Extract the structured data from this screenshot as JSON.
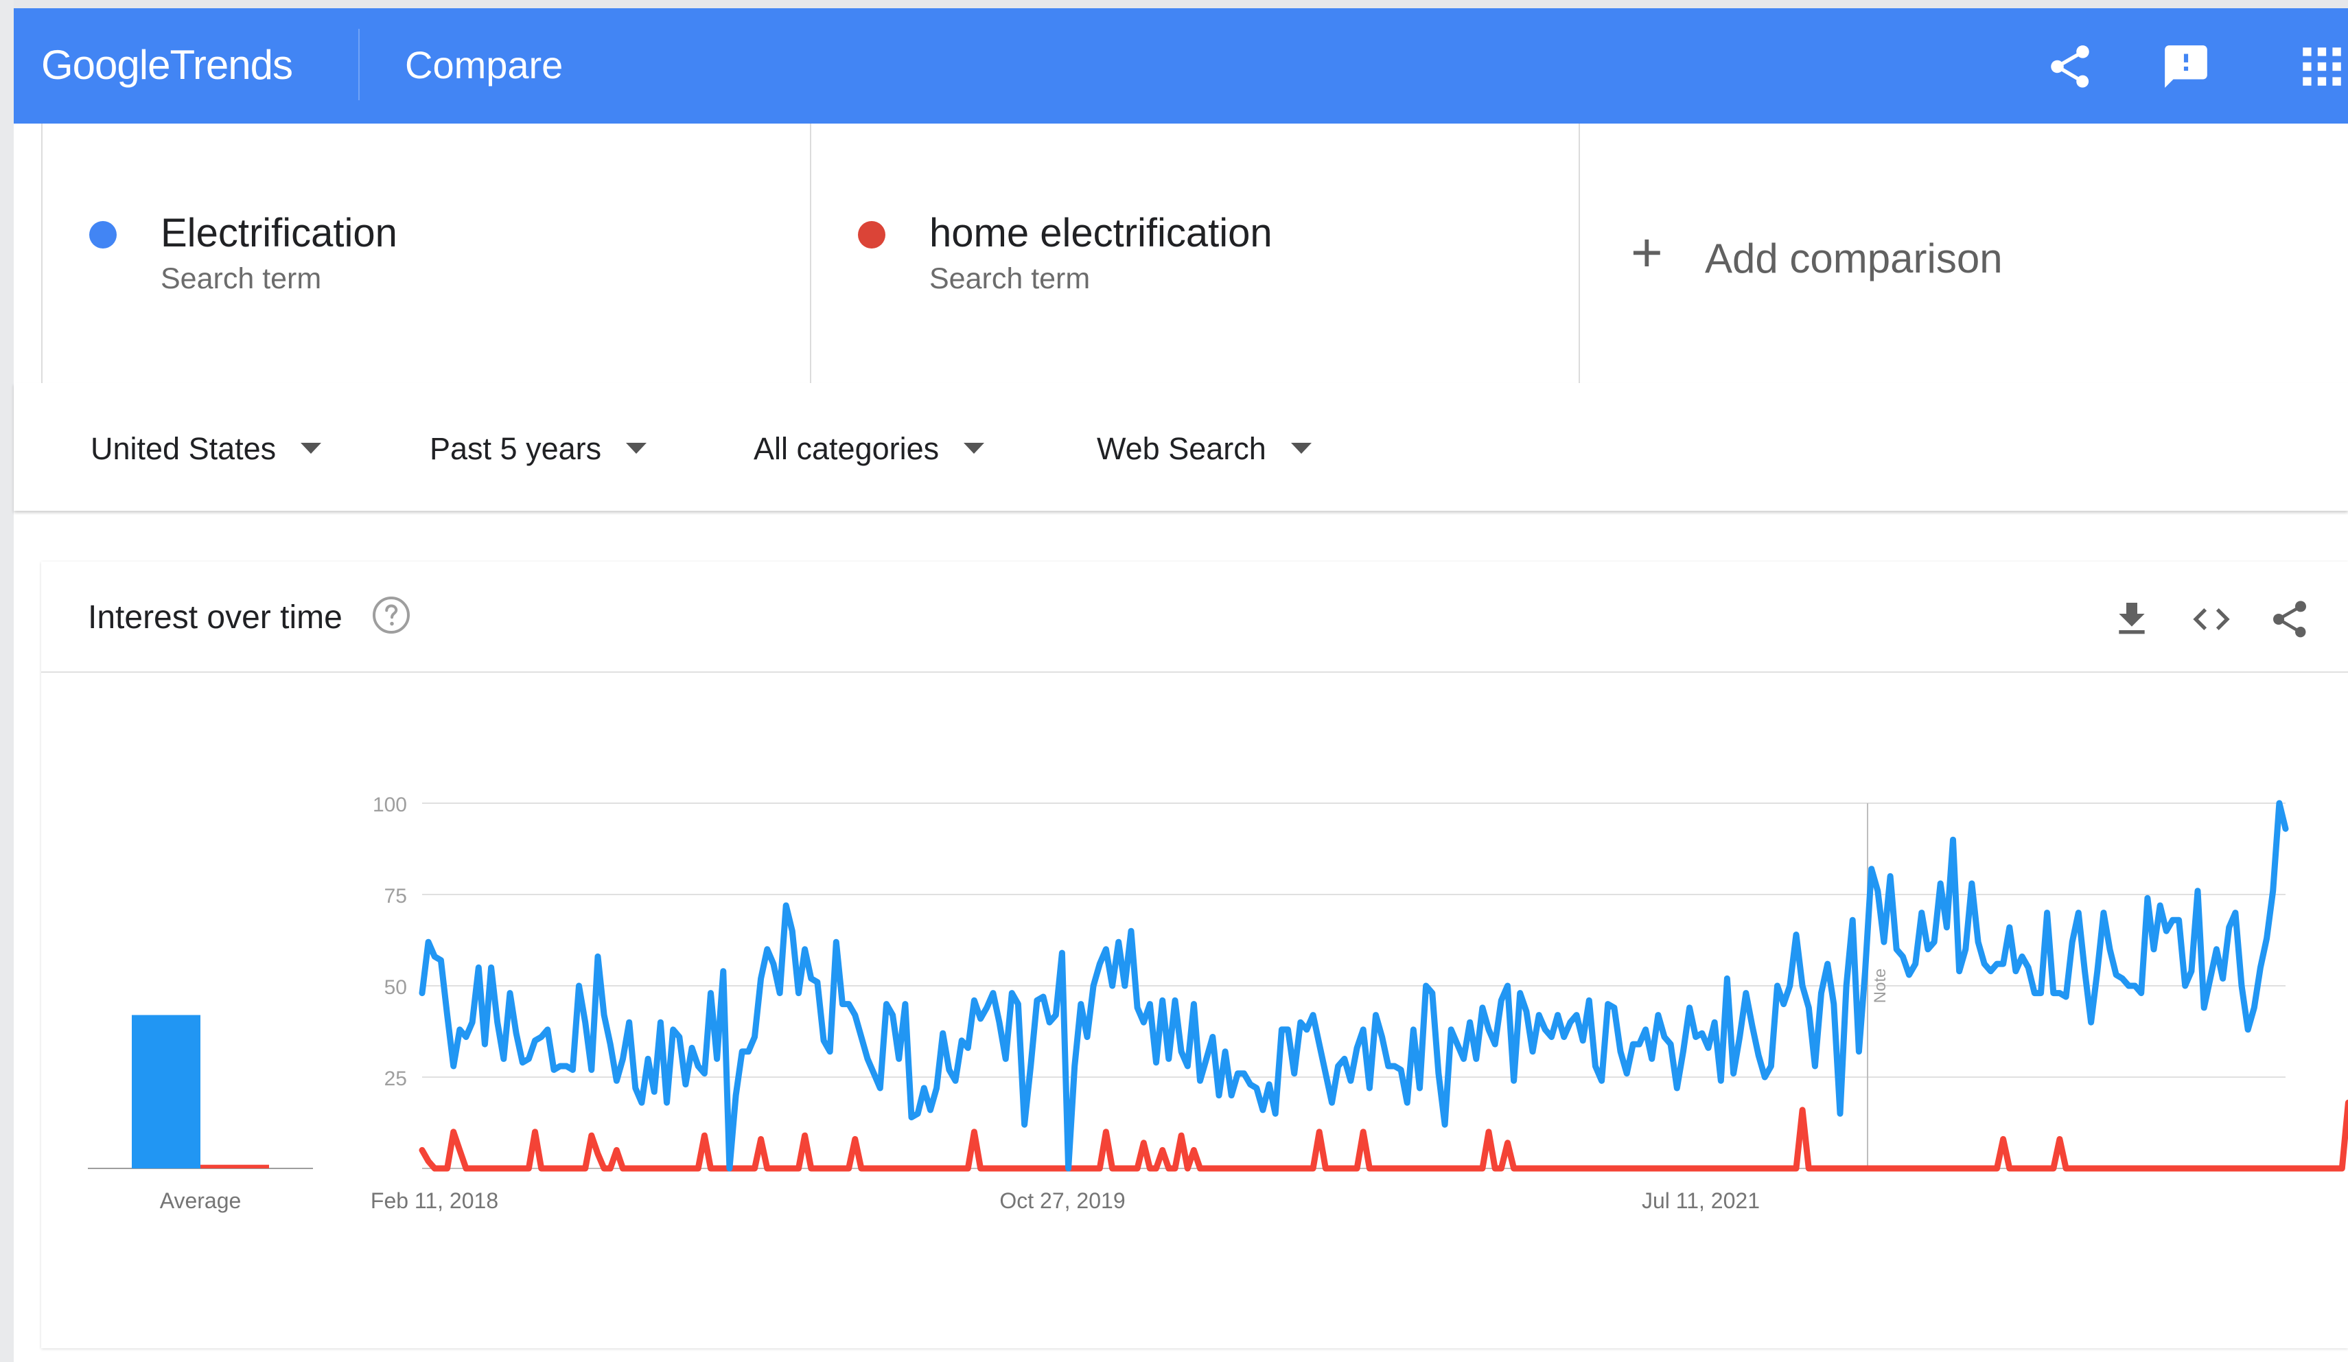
{
  "app": {
    "logo_google": "Google",
    "logo_trends": "Trends",
    "page_title": "Compare",
    "header_icons": [
      "share-icon",
      "feedback-icon",
      "apps-grid-icon"
    ]
  },
  "terms": [
    {
      "name": "Electrification",
      "subtitle": "Search term",
      "color": "#4285f4"
    },
    {
      "name": "home electrification",
      "subtitle": "Search term",
      "color": "#db4437"
    }
  ],
  "add_comparison": {
    "icon": "+",
    "label": "Add comparison"
  },
  "filters": {
    "region": "United States",
    "time": "Past 5 years",
    "category": "All categories",
    "search_type": "Web Search"
  },
  "card": {
    "title": "Interest over time",
    "icons": [
      "help-icon",
      "download-icon",
      "embed-icon",
      "share-icon"
    ]
  },
  "chart_data": [
    {
      "type": "bar",
      "categories": [
        "Average"
      ],
      "series": [
        {
          "name": "Electrification",
          "values": [
            42
          ],
          "color": "#2196f3"
        },
        {
          "name": "home electrification",
          "values": [
            1
          ],
          "color": "#f44336"
        }
      ],
      "ylim": [
        0,
        100
      ]
    },
    {
      "type": "line",
      "x_tick_labels": [
        "Feb 11, 2018",
        "Oct 27, 2019",
        "Jul 11, 2021"
      ],
      "y_tick_labels": [
        "100",
        "75",
        "50",
        "25"
      ],
      "ylim": [
        0,
        100
      ],
      "grid": true,
      "annotation": {
        "label": "Note",
        "position_fraction": 0.7757
      },
      "series": [
        {
          "name": "Electrification",
          "color": "#2196f3",
          "values": [
            48,
            62,
            58,
            57,
            42,
            28,
            38,
            36,
            40,
            55,
            34,
            55,
            40,
            30,
            48,
            37,
            29,
            30,
            35,
            36,
            38,
            27,
            28,
            28,
            27,
            50,
            40,
            27,
            58,
            42,
            34,
            24,
            30,
            40,
            22,
            18,
            30,
            21,
            40,
            18,
            38,
            36,
            23,
            33,
            28,
            26,
            48,
            30,
            54,
            0,
            20,
            32,
            32,
            36,
            52,
            60,
            56,
            48,
            72,
            65,
            48,
            60,
            52,
            51,
            35,
            32,
            62,
            45,
            45,
            42,
            36,
            30,
            26,
            22,
            45,
            42,
            30,
            45,
            14,
            15,
            22,
            16,
            22,
            37,
            27,
            24,
            35,
            33,
            46,
            41,
            44,
            48,
            40,
            30,
            48,
            45,
            12,
            28,
            46,
            47,
            40,
            42,
            59,
            0,
            28,
            45,
            36,
            50,
            56,
            60,
            50,
            62,
            50,
            65,
            44,
            40,
            45,
            29,
            46,
            30,
            46,
            32,
            28,
            45,
            24,
            30,
            36,
            20,
            32,
            20,
            26,
            26,
            23,
            22,
            16,
            23,
            15,
            38,
            38,
            26,
            40,
            38,
            42,
            34,
            26,
            18,
            28,
            30,
            24,
            33,
            38,
            22,
            42,
            36,
            28,
            28,
            27,
            18,
            38,
            22,
            50,
            48,
            26,
            12,
            38,
            34,
            30,
            40,
            30,
            44,
            38,
            34,
            46,
            50,
            24,
            48,
            43,
            32,
            42,
            38,
            36,
            42,
            36,
            40,
            42,
            35,
            46,
            28,
            24,
            45,
            44,
            32,
            26,
            34,
            34,
            38,
            30,
            42,
            36,
            34,
            22,
            32,
            44,
            36,
            37,
            33,
            40,
            24,
            52,
            26,
            36,
            48,
            39,
            31,
            25,
            28,
            50,
            45,
            50,
            64,
            50,
            44,
            28,
            48,
            56,
            45,
            15,
            50,
            68,
            32,
            54,
            82,
            76,
            62,
            80,
            60,
            58,
            53,
            56,
            70,
            60,
            62,
            78,
            66,
            90,
            54,
            60,
            78,
            62,
            56,
            54,
            56,
            56,
            66,
            54,
            58,
            55,
            48,
            48,
            70,
            48,
            48,
            47,
            62,
            70,
            54,
            40,
            54,
            70,
            60,
            53,
            52,
            50,
            50,
            48,
            74,
            60,
            72,
            65,
            68,
            68,
            50,
            54,
            76,
            44,
            52,
            60,
            52,
            66,
            70,
            50,
            38,
            44,
            55,
            63,
            76,
            100,
            93
          ],
          "_note": "weekly values, 0–100 scale"
        },
        {
          "name": "home electrification",
          "color": "#f44336",
          "values": [
            5,
            2,
            0,
            0,
            0,
            10,
            5,
            0,
            0,
            0,
            0,
            0,
            0,
            0,
            0,
            0,
            0,
            0,
            10,
            0,
            0,
            0,
            0,
            0,
            0,
            0,
            0,
            9,
            4,
            0,
            0,
            5,
            0,
            0,
            0,
            0,
            0,
            0,
            0,
            0,
            0,
            0,
            0,
            0,
            0,
            9,
            0,
            0,
            0,
            0,
            0,
            0,
            0,
            0,
            8,
            0,
            0,
            0,
            0,
            0,
            0,
            9,
            0,
            0,
            0,
            0,
            0,
            0,
            0,
            8,
            0,
            0,
            0,
            0,
            0,
            0,
            0,
            0,
            0,
            0,
            0,
            0,
            0,
            0,
            0,
            0,
            0,
            0,
            10,
            0,
            0,
            0,
            0,
            0,
            0,
            0,
            0,
            0,
            0,
            0,
            0,
            0,
            0,
            0,
            0,
            0,
            0,
            0,
            0,
            10,
            0,
            0,
            0,
            0,
            0,
            7,
            0,
            0,
            5,
            0,
            0,
            9,
            0,
            5,
            0,
            0,
            0,
            0,
            0,
            0,
            0,
            0,
            0,
            0,
            0,
            0,
            0,
            0,
            0,
            0,
            0,
            0,
            0,
            10,
            0,
            0,
            0,
            0,
            0,
            0,
            10,
            0,
            0,
            0,
            0,
            0,
            0,
            0,
            0,
            0,
            0,
            0,
            0,
            0,
            0,
            0,
            0,
            0,
            0,
            0,
            10,
            0,
            0,
            7,
            0,
            0,
            0,
            0,
            0,
            0,
            0,
            0,
            0,
            0,
            0,
            0,
            0,
            0,
            0,
            0,
            0,
            0,
            0,
            0,
            0,
            0,
            0,
            0,
            0,
            0,
            0,
            0,
            0,
            0,
            0,
            0,
            0,
            0,
            0,
            0,
            0,
            0,
            0,
            0,
            0,
            0,
            0,
            0,
            0,
            0,
            16,
            0,
            0,
            0,
            0,
            0,
            0,
            0,
            0,
            0,
            0,
            0,
            0,
            0,
            0,
            0,
            0,
            0,
            0,
            0,
            0,
            0,
            0,
            0,
            0,
            0,
            0,
            0,
            0,
            0,
            0,
            0,
            8,
            0,
            0,
            0,
            0,
            0,
            0,
            0,
            0,
            8,
            0,
            0,
            0,
            0,
            0,
            0,
            0,
            0,
            0,
            0,
            0,
            0,
            0,
            0,
            0,
            0,
            0,
            0,
            0,
            0,
            0,
            0,
            0,
            0,
            0,
            0,
            0,
            0,
            0,
            0,
            0,
            0,
            0,
            0,
            0,
            0,
            0,
            0,
            0,
            0,
            0,
            0,
            0,
            0,
            0,
            18,
            0
          ]
        }
      ]
    }
  ]
}
